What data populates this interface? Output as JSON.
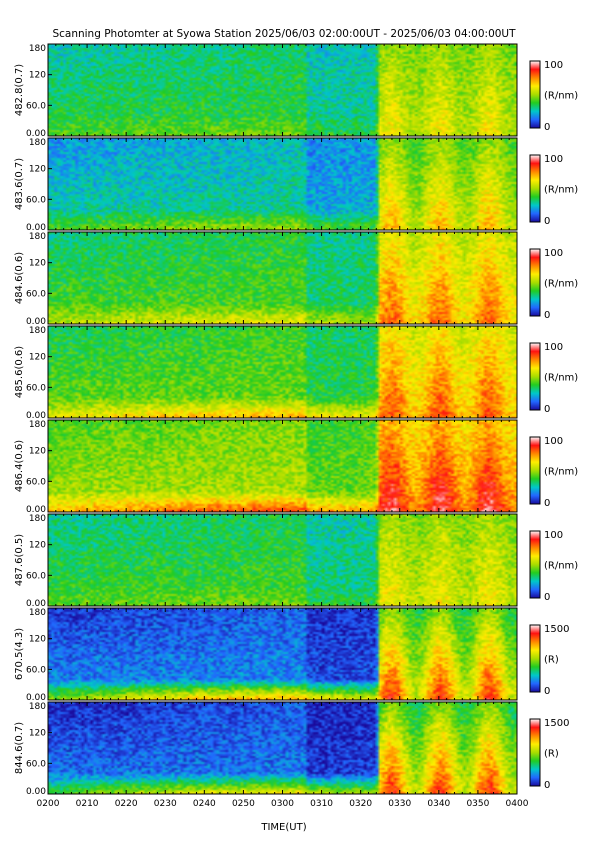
{
  "chart_data": {
    "type": "heatmap",
    "title": "Scanning Photomter at Syowa Station 2025/06/03 02:00:00UT - 2025/06/03 04:00:00UT",
    "xlabel": "TIME(UT)",
    "x_tick_labels": [
      "0200",
      "0210",
      "0220",
      "0230",
      "0240",
      "0250",
      "0300",
      "0310",
      "0320",
      "0330",
      "0340",
      "0350",
      "0400"
    ],
    "y_tick_labels": [
      "0.00",
      "60.0",
      "120",
      "180"
    ],
    "ylim": [
      0,
      180
    ],
    "colormap": [
      "#1a0a9c",
      "#2266ff",
      "#00c8c8",
      "#22cc22",
      "#aadd00",
      "#ffee00",
      "#ff8800",
      "#ff1111",
      "#ffffff"
    ],
    "panels": [
      {
        "ylabel": "482.8(0.7)",
        "colorbar_max": "100",
        "colorbar_min": "0",
        "colorbar_unit": "(R/nm)",
        "background_level": 0.38,
        "surge_level": 0.62,
        "low_band_level": 0.45
      },
      {
        "ylabel": "483.6(0.7)",
        "colorbar_max": "100",
        "colorbar_min": "0",
        "colorbar_unit": "(R/nm)",
        "background_level": 0.3,
        "surge_level": 0.7,
        "low_band_level": 0.5
      },
      {
        "ylabel": "484.6(0.6)",
        "colorbar_max": "100",
        "colorbar_min": "0",
        "colorbar_unit": "(R/nm)",
        "background_level": 0.42,
        "surge_level": 0.8,
        "low_band_level": 0.6
      },
      {
        "ylabel": "485.6(0.6)",
        "colorbar_max": "100",
        "colorbar_min": "0",
        "colorbar_unit": "(R/nm)",
        "background_level": 0.45,
        "surge_level": 0.82,
        "low_band_level": 0.7
      },
      {
        "ylabel": "486.4(0.6)",
        "colorbar_max": "100",
        "colorbar_min": "0",
        "colorbar_unit": "(R/nm)",
        "background_level": 0.52,
        "surge_level": 0.92,
        "low_band_level": 0.82
      },
      {
        "ylabel": "487.6(0.5)",
        "colorbar_max": "100",
        "colorbar_min": "0",
        "colorbar_unit": "(R/nm)",
        "background_level": 0.4,
        "surge_level": 0.62,
        "low_band_level": 0.45
      },
      {
        "ylabel": "670.5(4.3)",
        "colorbar_max": "1500",
        "colorbar_min": "0",
        "colorbar_unit": "(R)",
        "background_level": 0.18,
        "surge_level": 0.85,
        "low_band_level": 0.7
      },
      {
        "ylabel": "844.6(0.7)",
        "colorbar_max": "1500",
        "colorbar_min": "0",
        "colorbar_unit": "(R)",
        "background_level": 0.16,
        "surge_level": 0.85,
        "low_band_level": 0.6
      }
    ]
  }
}
